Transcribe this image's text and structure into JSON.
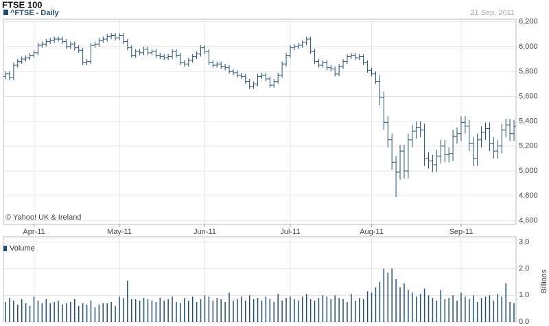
{
  "chart_data": [
    {
      "type": "ohlc",
      "title": "FTSE 100",
      "subtitle": "21 Sep, 2011",
      "annotation": "© Yahoo! UK & Ireland",
      "categories": [
        null,
        null,
        null,
        null,
        null,
        null,
        null,
        "Apr-11",
        null,
        null,
        null,
        null,
        null,
        null,
        null,
        null,
        null,
        null,
        null,
        null,
        null,
        null,
        null,
        null,
        null,
        null,
        null,
        null,
        "May-11",
        null,
        null,
        null,
        null,
        null,
        null,
        null,
        null,
        null,
        null,
        null,
        null,
        null,
        null,
        null,
        null,
        null,
        null,
        null,
        null,
        "Jun-11",
        null,
        null,
        null,
        null,
        null,
        null,
        null,
        null,
        null,
        null,
        null,
        null,
        null,
        null,
        null,
        null,
        null,
        null,
        null,
        null,
        "Jul-11",
        null,
        null,
        null,
        null,
        null,
        null,
        null,
        null,
        null,
        null,
        null,
        null,
        null,
        null,
        null,
        null,
        null,
        null,
        null,
        "Aug-11",
        null,
        null,
        null,
        null,
        null,
        null,
        null,
        null,
        null,
        null,
        null,
        null,
        null,
        null,
        null,
        null,
        null,
        null,
        null,
        null,
        null,
        "Sep-11",
        null,
        null,
        null,
        null,
        null,
        null,
        null,
        null,
        null,
        null,
        null,
        null,
        null
      ],
      "series": [
        {
          "name": "^FTSE - Daily",
          "color": "#1f4e79",
          "open": [
            5760,
            5780,
            5750,
            5850,
            5880,
            5900,
            5910,
            5930,
            5950,
            6010,
            6020,
            6040,
            6050,
            6060,
            6060,
            6040,
            6000,
            6020,
            5990,
            5970,
            5870,
            5880,
            6010,
            6020,
            6050,
            6060,
            6080,
            6090,
            6070,
            6090,
            6040,
            5990,
            5930,
            5960,
            5950,
            5980,
            5950,
            5960,
            5930,
            5920,
            5910,
            5920,
            5960,
            5930,
            5870,
            5860,
            5890,
            5920,
            5940,
            5990,
            5960,
            5870,
            5850,
            5860,
            5840,
            5830,
            5800,
            5790,
            5770,
            5760,
            5720,
            5680,
            5700,
            5760,
            5770,
            5740,
            5690,
            5720,
            5770,
            5860,
            5930,
            5990,
            6000,
            6010,
            6030,
            6060,
            5960,
            5880,
            5850,
            5870,
            5830,
            5820,
            5780,
            5840,
            5880,
            5920,
            5930,
            5910,
            5920,
            5870,
            5810,
            5780,
            5720,
            5590,
            5390,
            5250,
            5070,
            4990,
            5160,
            5000,
            5250,
            5320,
            5350,
            5330,
            5100,
            5080,
            5050,
            5120,
            5200,
            5130,
            5140,
            5280,
            5300,
            5390,
            5360,
            5220,
            5100,
            5250,
            5310,
            5340,
            5220,
            5160,
            5200,
            5330,
            5370,
            5300
          ],
          "high": [
            5800,
            5800,
            5870,
            5900,
            5920,
            5930,
            5950,
            5970,
            6030,
            6040,
            6060,
            6070,
            6080,
            6080,
            6080,
            6060,
            6040,
            6040,
            6010,
            5990,
            5900,
            6030,
            6040,
            6070,
            6080,
            6100,
            6110,
            6110,
            6110,
            6110,
            6060,
            6010,
            5980,
            5980,
            6000,
            6000,
            5980,
            5980,
            5950,
            5940,
            5940,
            5980,
            5980,
            5950,
            5890,
            5910,
            5940,
            5960,
            6010,
            6010,
            5980,
            5890,
            5880,
            5880,
            5860,
            5850,
            5820,
            5810,
            5790,
            5780,
            5740,
            5720,
            5780,
            5790,
            5790,
            5760,
            5740,
            5790,
            5880,
            5950,
            6010,
            6020,
            6030,
            6050,
            6080,
            6080,
            5980,
            5900,
            5890,
            5890,
            5850,
            5840,
            5860,
            5900,
            5940,
            5950,
            5950,
            5940,
            5940,
            5890,
            5830,
            5800,
            5770,
            5640,
            5440,
            5300,
            5120,
            5210,
            5210,
            5300,
            5370,
            5400,
            5400,
            5380,
            5150,
            5130,
            5170,
            5250,
            5250,
            5190,
            5330,
            5350,
            5440,
            5440,
            5410,
            5270,
            5300,
            5360,
            5390,
            5390,
            5270,
            5250,
            5380,
            5420,
            5420,
            5410
          ],
          "low": [
            5740,
            5730,
            5730,
            5830,
            5860,
            5880,
            5890,
            5910,
            5930,
            5990,
            6000,
            6020,
            6030,
            6040,
            6020,
            5980,
            5980,
            5970,
            5950,
            5850,
            5850,
            5860,
            5990,
            6000,
            6030,
            6040,
            6060,
            6050,
            6050,
            6020,
            5970,
            5910,
            5910,
            5930,
            5930,
            5930,
            5930,
            5910,
            5900,
            5890,
            5890,
            5900,
            5910,
            5850,
            5840,
            5840,
            5870,
            5900,
            5920,
            5940,
            5850,
            5830,
            5830,
            5820,
            5810,
            5780,
            5770,
            5750,
            5740,
            5700,
            5660,
            5660,
            5680,
            5740,
            5720,
            5670,
            5670,
            5700,
            5750,
            5840,
            5910,
            5970,
            5980,
            5990,
            6010,
            5940,
            5860,
            5830,
            5830,
            5810,
            5800,
            5760,
            5760,
            5820,
            5860,
            5900,
            5890,
            5890,
            5850,
            5790,
            5760,
            5700,
            5530,
            5330,
            5190,
            5010,
            4790,
            4930,
            4940,
            4940,
            5190,
            5260,
            5270,
            5040,
            5020,
            4990,
            4990,
            5060,
            5070,
            5070,
            5080,
            5220,
            5240,
            5300,
            5160,
            5040,
            5040,
            5190,
            5250,
            5160,
            5100,
            5100,
            5140,
            5270,
            5240,
            5240
          ],
          "close": [
            5780,
            5750,
            5850,
            5880,
            5900,
            5910,
            5930,
            5950,
            6010,
            6020,
            6040,
            6050,
            6060,
            6060,
            6040,
            6000,
            6020,
            5990,
            5970,
            5870,
            5880,
            6010,
            6020,
            6050,
            6060,
            6080,
            6090,
            6070,
            6090,
            6040,
            5990,
            5930,
            5960,
            5950,
            5980,
            5950,
            5960,
            5930,
            5920,
            5910,
            5920,
            5960,
            5930,
            5870,
            5860,
            5890,
            5920,
            5940,
            5990,
            5960,
            5870,
            5850,
            5860,
            5840,
            5830,
            5800,
            5790,
            5770,
            5760,
            5720,
            5680,
            5700,
            5760,
            5770,
            5740,
            5690,
            5720,
            5770,
            5860,
            5930,
            5990,
            6000,
            6010,
            6030,
            6060,
            5960,
            5880,
            5850,
            5870,
            5830,
            5820,
            5780,
            5840,
            5880,
            5920,
            5930,
            5910,
            5920,
            5870,
            5810,
            5780,
            5720,
            5590,
            5390,
            5250,
            5070,
            4990,
            5160,
            5000,
            5250,
            5320,
            5350,
            5330,
            5100,
            5080,
            5050,
            5120,
            5200,
            5130,
            5140,
            5280,
            5300,
            5390,
            5360,
            5220,
            5100,
            5250,
            5310,
            5340,
            5220,
            5160,
            5200,
            5330,
            5370,
            5300,
            5360
          ]
        }
      ],
      "ylim": [
        4570,
        6220
      ],
      "yticks": [
        {
          "value": 4600,
          "label": "4,600"
        },
        {
          "value": 4800,
          "label": "4,800"
        },
        {
          "value": 5000,
          "label": "5,000"
        },
        {
          "value": 5200,
          "label": "5,200"
        },
        {
          "value": 5400,
          "label": "5,400"
        },
        {
          "value": 5600,
          "label": "5,600"
        },
        {
          "value": 5800,
          "label": "5,800"
        },
        {
          "value": 6000,
          "label": "6,000"
        },
        {
          "value": 6200,
          "label": "6,200"
        }
      ],
      "grid": true
    },
    {
      "type": "bar",
      "ylabel": "Billions",
      "series": [
        {
          "name": "Volume",
          "color": "#1f4e79",
          "values": [
            0.75,
            0.9,
            0.8,
            0.65,
            0.85,
            0.7,
            0.6,
            0.95,
            0.8,
            0.7,
            0.85,
            0.7,
            0.75,
            0.8,
            0.65,
            0.7,
            0.75,
            0.85,
            0.6,
            0.7,
            0.65,
            0.8,
            0.55,
            0.65,
            0.7,
            0.7,
            0.75,
            0.6,
            0.95,
            0.9,
            1.55,
            0.85,
            0.85,
            0.8,
            0.9,
            0.85,
            0.8,
            0.75,
            0.9,
            0.8,
            0.85,
            0.95,
            0.75,
            0.7,
            0.9,
            0.8,
            0.95,
            0.75,
            0.85,
            1.0,
            0.95,
            0.8,
            0.9,
            0.85,
            0.75,
            1.1,
            0.8,
            0.85,
            0.95,
            0.8,
            1.0,
            0.85,
            0.9,
            0.8,
            0.95,
            0.85,
            0.75,
            1.05,
            0.8,
            0.9,
            0.95,
            0.85,
            0.8,
            0.95,
            1.05,
            0.85,
            0.8,
            0.9,
            1.0,
            0.95,
            0.85,
            1.0,
            0.9,
            0.85,
            0.75,
            1.05,
            0.8,
            0.9,
            0.85,
            1.15,
            1.1,
            1.3,
            1.5,
            2.0,
            1.85,
            2.0,
            1.6,
            1.3,
            1.45,
            1.2,
            1.1,
            0.95,
            1.05,
            1.25,
            1.0,
            0.9,
            0.8,
            1.2,
            0.85,
            0.9,
            1.0,
            0.8,
            1.1,
            0.95,
            0.85,
            1.0,
            0.75,
            0.9,
            0.95,
            1.0,
            0.8,
            1.05,
            0.95,
            1.45,
            0.75,
            0.7
          ]
        }
      ],
      "ylim": [
        0,
        3.2
      ],
      "yticks": [
        {
          "value": 0,
          "label": "0.0"
        },
        {
          "value": 1,
          "label": "1.0"
        },
        {
          "value": 2,
          "label": "2.0"
        },
        {
          "value": 3,
          "label": "3.0"
        }
      ],
      "grid": true
    }
  ]
}
